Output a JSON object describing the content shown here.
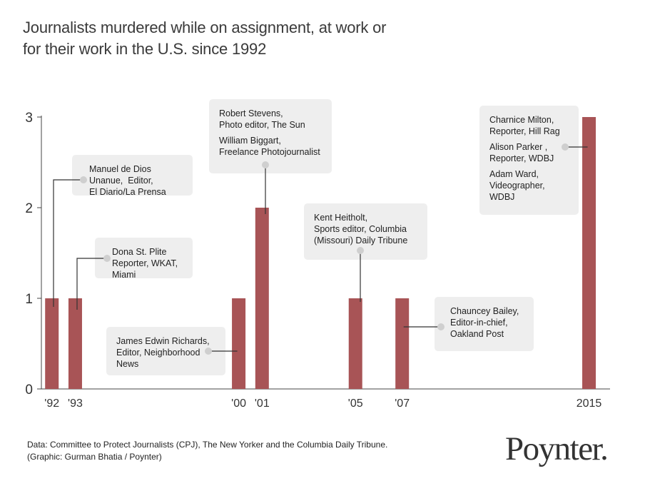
{
  "title_lines": [
    "Journalists murdered while on assignment, at work or",
    "for their work in the U.S. since 1992"
  ],
  "footer": {
    "source": "Data: Committee to Protect Journalists (CPJ), The New Yorker and the Columbia Daily Tribune.",
    "credit": "(Graphic: Gurman Bhatia / Poynter)"
  },
  "logo_text": "Poynter.",
  "colors": {
    "bar": "#a85456",
    "axis": "#444444",
    "box": "#eeeeee",
    "connector": "#333333",
    "dot": "#cfcfcf"
  },
  "chart_data": {
    "type": "bar",
    "title": "Journalists murdered while on assignment, at work or for their work in the U.S. since 1992",
    "xlabel": "",
    "ylabel": "",
    "ylim": [
      0,
      3
    ],
    "yticks": [
      0,
      1,
      2,
      3
    ],
    "categories": [
      "1992",
      "1993",
      "2000",
      "2001",
      "2005",
      "2007",
      "2015"
    ],
    "tick_labels": [
      "'92",
      "'93",
      "'00",
      "'01",
      "'05",
      "'07",
      "2015"
    ],
    "values": [
      1,
      1,
      1,
      2,
      1,
      1,
      3
    ]
  },
  "annotations": [
    {
      "year": "1992",
      "entries": [
        [
          "Manuel de Dios",
          "Unanue,  Editor,",
          "El Diario/La Prensa"
        ]
      ]
    },
    {
      "year": "1993",
      "entries": [
        [
          "Dona St. Plite",
          "Reporter, WKAT,",
          "Miami"
        ]
      ]
    },
    {
      "year": "2000",
      "entries": [
        [
          "James Edwin Richards,",
          "Editor, Neighborhood",
          "News"
        ]
      ]
    },
    {
      "year": "2001",
      "entries": [
        [
          "Robert Stevens,",
          "Photo editor, The Sun"
        ],
        [
          "William Biggart,",
          "Freelance Photojournalist"
        ]
      ]
    },
    {
      "year": "2005",
      "entries": [
        [
          "Kent Heitholt,",
          "Sports editor, Columbia",
          "(Missouri) Daily Tribune"
        ]
      ]
    },
    {
      "year": "2007",
      "entries": [
        [
          "Chauncey Bailey,",
          "Editor-in-chief,",
          "Oakland Post"
        ]
      ]
    },
    {
      "year": "2015",
      "entries": [
        [
          "Charnice Milton,",
          "Reporter, Hill Rag"
        ],
        [
          "Alison Parker ,",
          "Reporter, WDBJ"
        ],
        [
          "Adam Ward,",
          "Videographer,",
          "WDBJ"
        ]
      ]
    }
  ]
}
